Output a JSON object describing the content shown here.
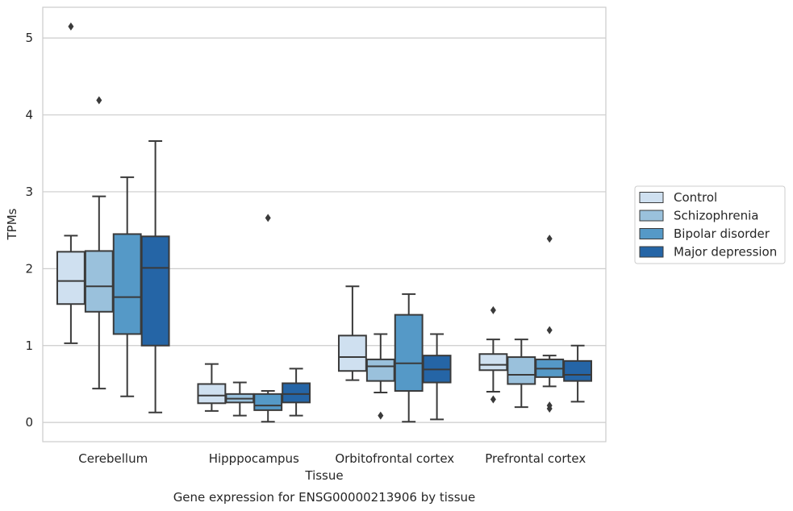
{
  "chart_data": {
    "type": "boxplot",
    "xlabel": "Tissue",
    "ylabel": "TPMs",
    "caption": "Gene expression for ENSG00000213906 by tissue",
    "categories": [
      "Cerebellum",
      "Hipppocampus",
      "Orbitofrontal cortex",
      "Prefrontal cortex"
    ],
    "ylim": [
      -0.25,
      5.4
    ],
    "yticks": [
      0,
      1,
      2,
      3,
      4,
      5
    ],
    "grid": "horizontal",
    "legend_position": "right",
    "series": [
      {
        "name": "Control",
        "color": "#cfe0f0",
        "boxes": [
          {
            "whisker_low": 1.03,
            "q1": 1.54,
            "median": 1.84,
            "q3": 2.22,
            "whisker_high": 2.43,
            "outliers": [
              5.15
            ]
          },
          {
            "whisker_low": 0.15,
            "q1": 0.25,
            "median": 0.35,
            "q3": 0.5,
            "whisker_high": 0.76,
            "outliers": []
          },
          {
            "whisker_low": 0.55,
            "q1": 0.67,
            "median": 0.85,
            "q3": 1.13,
            "whisker_high": 1.77,
            "outliers": []
          },
          {
            "whisker_low": 0.4,
            "q1": 0.68,
            "median": 0.75,
            "q3": 0.89,
            "whisker_high": 1.08,
            "outliers": [
              0.3,
              1.46
            ]
          }
        ]
      },
      {
        "name": "Schizophrenia",
        "color": "#9ac1dc",
        "boxes": [
          {
            "whisker_low": 0.44,
            "q1": 1.44,
            "median": 1.77,
            "q3": 2.23,
            "whisker_high": 2.94,
            "outliers": [
              4.19
            ]
          },
          {
            "whisker_low": 0.09,
            "q1": 0.26,
            "median": 0.31,
            "q3": 0.37,
            "whisker_high": 0.52,
            "outliers": []
          },
          {
            "whisker_low": 0.39,
            "q1": 0.54,
            "median": 0.73,
            "q3": 0.82,
            "whisker_high": 1.15,
            "outliers": [
              0.09
            ]
          },
          {
            "whisker_low": 0.2,
            "q1": 0.5,
            "median": 0.62,
            "q3": 0.85,
            "whisker_high": 1.08,
            "outliers": []
          }
        ]
      },
      {
        "name": "Bipolar disorder",
        "color": "#5599c7",
        "boxes": [
          {
            "whisker_low": 0.34,
            "q1": 1.15,
            "median": 1.63,
            "q3": 2.45,
            "whisker_high": 3.19,
            "outliers": []
          },
          {
            "whisker_low": 0.01,
            "q1": 0.16,
            "median": 0.22,
            "q3": 0.37,
            "whisker_high": 0.41,
            "outliers": [
              2.66
            ]
          },
          {
            "whisker_low": 0.01,
            "q1": 0.41,
            "median": 0.77,
            "q3": 1.4,
            "whisker_high": 1.67,
            "outliers": []
          },
          {
            "whisker_low": 0.47,
            "q1": 0.59,
            "median": 0.7,
            "q3": 0.82,
            "whisker_high": 0.87,
            "outliers": [
              0.18,
              0.22,
              1.2,
              2.39
            ]
          }
        ]
      },
      {
        "name": "Major depression",
        "color": "#2565a6",
        "boxes": [
          {
            "whisker_low": 0.13,
            "q1": 1.0,
            "median": 2.01,
            "q3": 2.42,
            "whisker_high": 3.66,
            "outliers": []
          },
          {
            "whisker_low": 0.09,
            "q1": 0.26,
            "median": 0.37,
            "q3": 0.51,
            "whisker_high": 0.7,
            "outliers": []
          },
          {
            "whisker_low": 0.04,
            "q1": 0.52,
            "median": 0.69,
            "q3": 0.87,
            "whisker_high": 1.15,
            "outliers": []
          },
          {
            "whisker_low": 0.27,
            "q1": 0.54,
            "median": 0.62,
            "q3": 0.8,
            "whisker_high": 1.0,
            "outliers": []
          }
        ]
      }
    ]
  }
}
